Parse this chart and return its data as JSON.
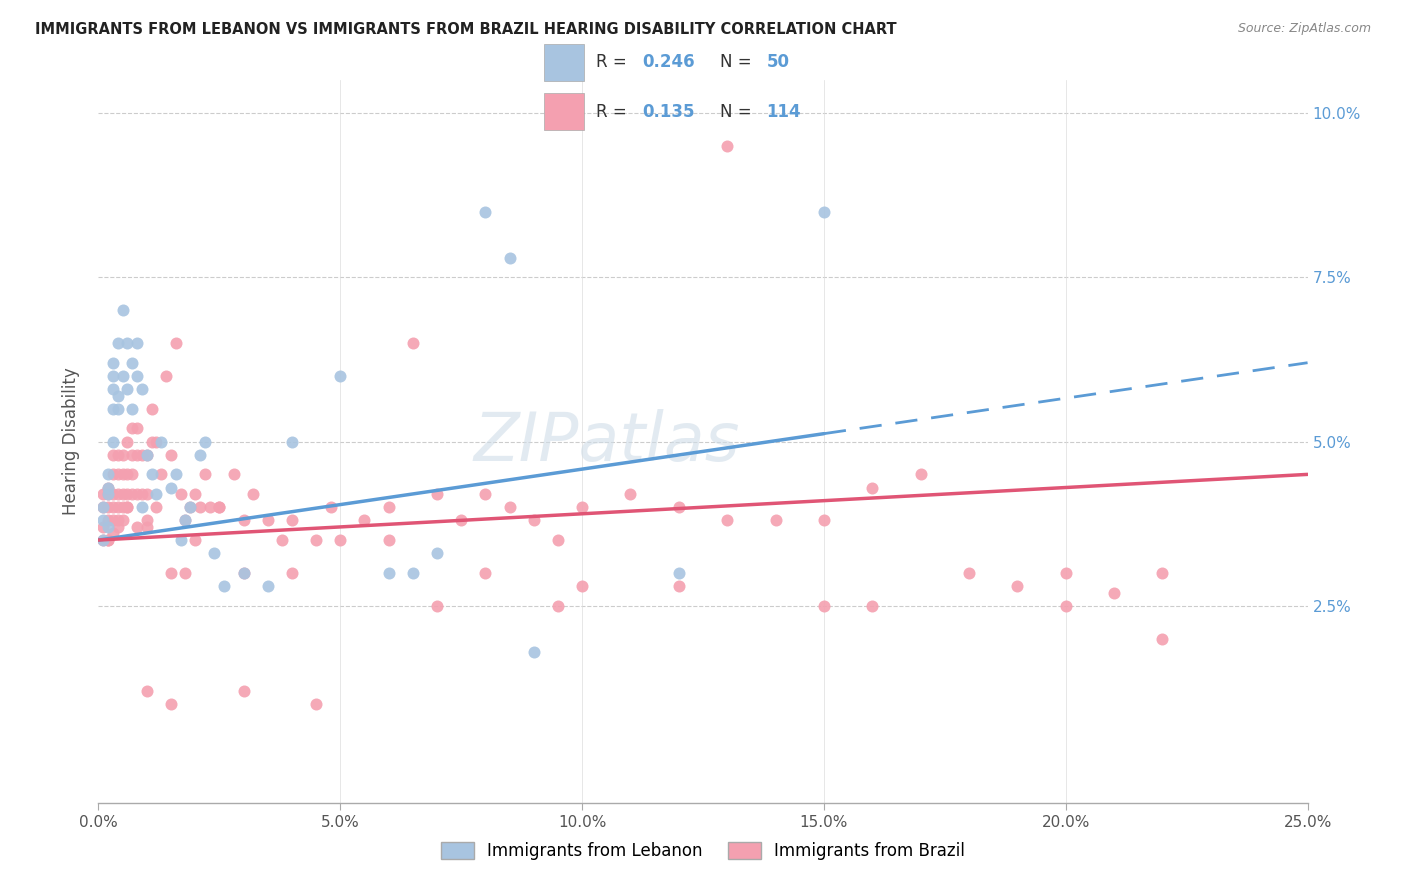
{
  "title": "IMMIGRANTS FROM LEBANON VS IMMIGRANTS FROM BRAZIL HEARING DISABILITY CORRELATION CHART",
  "source": "Source: ZipAtlas.com",
  "xlabel_ticks": [
    "0.0%",
    "5.0%",
    "10.0%",
    "15.0%",
    "20.0%",
    "25.0%"
  ],
  "xlabel_tick_vals": [
    0.0,
    0.05,
    0.1,
    0.15,
    0.2,
    0.25
  ],
  "ylabel_ticks": [
    "2.5%",
    "5.0%",
    "7.5%",
    "10.0%"
  ],
  "ylabel_tick_vals": [
    0.025,
    0.05,
    0.075,
    0.1
  ],
  "xlim": [
    0.0,
    0.25
  ],
  "ylim": [
    -0.005,
    0.105
  ],
  "ylabel": "Hearing Disability",
  "legend_label1": "Immigrants from Lebanon",
  "legend_label2": "Immigrants from Brazil",
  "R1": 0.246,
  "N1": 50,
  "R2": 0.135,
  "N2": 114,
  "color1": "#a8c4e0",
  "color2": "#f4a0b0",
  "line_color1": "#5b9bd5",
  "line_color2": "#e05575",
  "watermark": "ZIPatlas",
  "watermark_color": "#c8d8e8",
  "lebanon_x": [
    0.001,
    0.001,
    0.001,
    0.002,
    0.002,
    0.002,
    0.002,
    0.003,
    0.003,
    0.003,
    0.003,
    0.003,
    0.004,
    0.004,
    0.004,
    0.005,
    0.005,
    0.006,
    0.006,
    0.007,
    0.007,
    0.008,
    0.008,
    0.009,
    0.009,
    0.01,
    0.011,
    0.012,
    0.013,
    0.015,
    0.016,
    0.017,
    0.018,
    0.019,
    0.021,
    0.022,
    0.024,
    0.026,
    0.03,
    0.035,
    0.04,
    0.05,
    0.06,
    0.065,
    0.07,
    0.08,
    0.085,
    0.09,
    0.12,
    0.15
  ],
  "lebanon_y": [
    0.035,
    0.038,
    0.04,
    0.037,
    0.042,
    0.043,
    0.045,
    0.05,
    0.055,
    0.058,
    0.06,
    0.062,
    0.055,
    0.057,
    0.065,
    0.06,
    0.07,
    0.065,
    0.058,
    0.062,
    0.055,
    0.06,
    0.065,
    0.058,
    0.04,
    0.048,
    0.045,
    0.042,
    0.05,
    0.043,
    0.045,
    0.035,
    0.038,
    0.04,
    0.048,
    0.05,
    0.033,
    0.028,
    0.03,
    0.028,
    0.05,
    0.06,
    0.03,
    0.03,
    0.033,
    0.085,
    0.078,
    0.018,
    0.03,
    0.085
  ],
  "brazil_x": [
    0.001,
    0.001,
    0.001,
    0.001,
    0.002,
    0.002,
    0.002,
    0.002,
    0.002,
    0.003,
    0.003,
    0.003,
    0.003,
    0.003,
    0.003,
    0.004,
    0.004,
    0.004,
    0.004,
    0.004,
    0.005,
    0.005,
    0.005,
    0.005,
    0.005,
    0.006,
    0.006,
    0.006,
    0.006,
    0.007,
    0.007,
    0.007,
    0.007,
    0.008,
    0.008,
    0.008,
    0.009,
    0.009,
    0.01,
    0.01,
    0.01,
    0.011,
    0.011,
    0.012,
    0.013,
    0.014,
    0.015,
    0.016,
    0.017,
    0.018,
    0.019,
    0.02,
    0.021,
    0.022,
    0.023,
    0.025,
    0.028,
    0.03,
    0.032,
    0.035,
    0.038,
    0.04,
    0.045,
    0.048,
    0.055,
    0.06,
    0.065,
    0.07,
    0.075,
    0.08,
    0.085,
    0.09,
    0.095,
    0.1,
    0.11,
    0.12,
    0.13,
    0.14,
    0.15,
    0.16,
    0.17,
    0.18,
    0.19,
    0.2,
    0.21,
    0.22,
    0.002,
    0.004,
    0.006,
    0.008,
    0.01,
    0.012,
    0.015,
    0.018,
    0.02,
    0.025,
    0.03,
    0.04,
    0.05,
    0.06,
    0.08,
    0.1,
    0.12,
    0.15,
    0.2,
    0.22,
    0.13,
    0.16,
    0.095,
    0.07,
    0.045,
    0.03,
    0.015,
    0.01
  ],
  "brazil_y": [
    0.037,
    0.04,
    0.042,
    0.035,
    0.038,
    0.04,
    0.042,
    0.035,
    0.043,
    0.04,
    0.042,
    0.045,
    0.038,
    0.036,
    0.048,
    0.04,
    0.042,
    0.045,
    0.048,
    0.038,
    0.038,
    0.04,
    0.042,
    0.045,
    0.048,
    0.04,
    0.042,
    0.045,
    0.05,
    0.042,
    0.045,
    0.048,
    0.052,
    0.042,
    0.048,
    0.052,
    0.042,
    0.048,
    0.038,
    0.042,
    0.048,
    0.05,
    0.055,
    0.05,
    0.045,
    0.06,
    0.048,
    0.065,
    0.042,
    0.038,
    0.04,
    0.042,
    0.04,
    0.045,
    0.04,
    0.04,
    0.045,
    0.038,
    0.042,
    0.038,
    0.035,
    0.038,
    0.035,
    0.04,
    0.038,
    0.035,
    0.065,
    0.042,
    0.038,
    0.042,
    0.04,
    0.038,
    0.035,
    0.04,
    0.042,
    0.04,
    0.038,
    0.038,
    0.038,
    0.043,
    0.045,
    0.03,
    0.028,
    0.03,
    0.027,
    0.03,
    0.035,
    0.037,
    0.04,
    0.037,
    0.037,
    0.04,
    0.03,
    0.03,
    0.035,
    0.04,
    0.03,
    0.03,
    0.035,
    0.04,
    0.03,
    0.028,
    0.028,
    0.025,
    0.025,
    0.02,
    0.095,
    0.025,
    0.025,
    0.025,
    0.01,
    0.012,
    0.01,
    0.012
  ],
  "line1_x0": 0.0,
  "line1_x1": 0.25,
  "line1_y0": 0.035,
  "line1_y1": 0.062,
  "line1_solid_end": 0.15,
  "line2_x0": 0.0,
  "line2_x1": 0.25,
  "line2_y0": 0.035,
  "line2_y1": 0.045
}
